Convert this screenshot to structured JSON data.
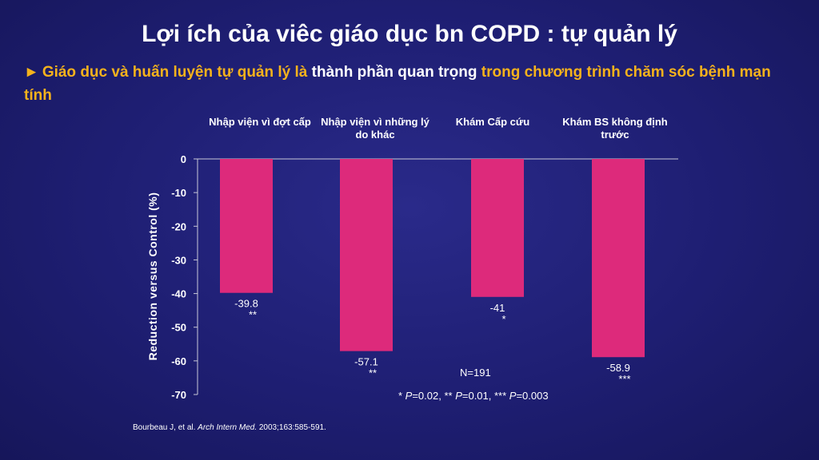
{
  "title": "Lợi ích của viêc giáo dục bn COPD : tự quản lý",
  "bullet": {
    "arrow": "►",
    "part1": "Giáo dục và huấn luyện tự quản lý là",
    "part2": "thành phần quan trọng",
    "part3": "trong chương trình chăm sóc bệnh mạn tính"
  },
  "colors": {
    "bar": "#dd2a7b",
    "accent": "#f5b21c",
    "background": "#1e1e72"
  },
  "chart_data": {
    "type": "bar",
    "categories": [
      "Nhập viện vì đợt cấp",
      "Nhập viện vì những lý do khác",
      "Khám Cấp cứu",
      "Khám BS không định trước"
    ],
    "values": [
      -39.8,
      -57.1,
      -41,
      -58.9
    ],
    "value_labels": [
      "-39.8",
      "-57.1",
      "-41",
      "-58.9"
    ],
    "significance": [
      "**",
      "**",
      "*",
      "***"
    ],
    "ylabel": "Reduction versus Control (%)",
    "ylim": [
      -70,
      0
    ],
    "yticks": [
      0,
      -10,
      -20,
      -30,
      -40,
      -50,
      -60,
      -70
    ],
    "ytick_labels": [
      "0",
      "-10",
      "-20",
      "-30",
      "-40",
      "-50",
      "-60",
      "-70"
    ],
    "n_label": "N=191",
    "footnote": "* P=0.02, ** P=0.01, *** P=0.003"
  },
  "reference": {
    "authors": "Bourbeau J,  et al.",
    "journal": "Arch Intern Med.",
    "citation": "2003;163:585-591."
  }
}
